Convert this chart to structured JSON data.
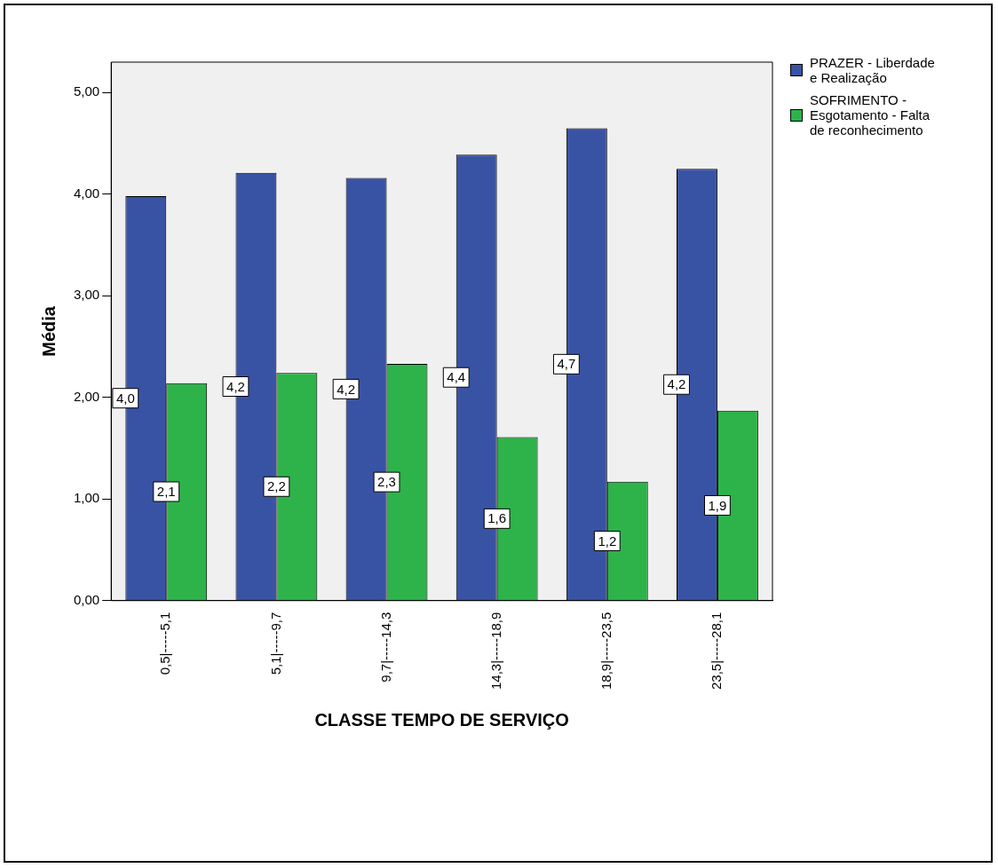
{
  "chart_data": {
    "type": "bar",
    "xlabel": "CLASSE TEMPO DE SERVIÇO",
    "ylabel": "Média",
    "categories": [
      "0,5|-----5,1",
      "5,1|-----9,7",
      "9,7|-----14,3",
      "14,3|-----18,9",
      "18,9|-----23,5",
      "23,5|-----28,1"
    ],
    "series": [
      {
        "name": "PRAZER - Liberdade e Realização",
        "color": "#3953a4",
        "values": [
          3.98,
          4.21,
          4.16,
          4.39,
          4.65,
          4.25
        ],
        "value_labels": [
          "4,0",
          "4,2",
          "4,2",
          "4,4",
          "4,7",
          "4,2"
        ]
      },
      {
        "name": "SOFRIMENTO - Esgotamento - Falta de reconhecimento",
        "color": "#2db34a",
        "values": [
          2.14,
          2.24,
          2.33,
          1.61,
          1.17,
          1.87
        ],
        "value_labels": [
          "2,1",
          "2,2",
          "2,3",
          "1,6",
          "1,2",
          "1,9"
        ]
      }
    ],
    "ylim": [
      0,
      5.3
    ],
    "yticks": [
      {
        "value": 0,
        "label": "0,00"
      },
      {
        "value": 1,
        "label": "1,00"
      },
      {
        "value": 2,
        "label": "2,00"
      },
      {
        "value": 3,
        "label": "3,00"
      },
      {
        "value": 4,
        "label": "4,00"
      },
      {
        "value": 5,
        "label": "5,00"
      }
    ],
    "grid": false,
    "legend": "top right"
  }
}
